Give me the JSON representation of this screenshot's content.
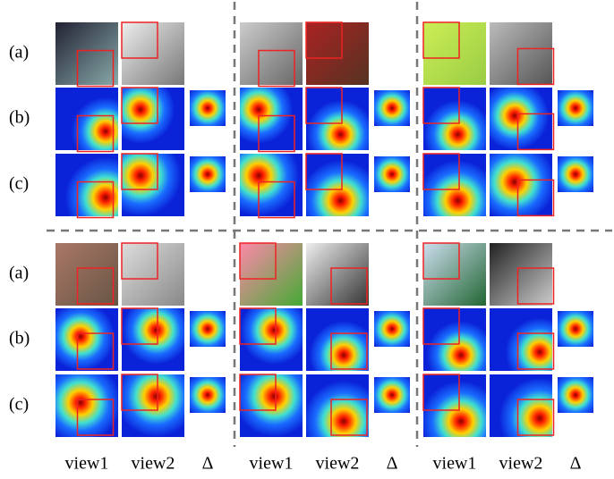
{
  "row_labels": [
    "(a)",
    "(b)",
    "(c)",
    "(a)",
    "(b)",
    "(c)"
  ],
  "column_labels": [
    "view1",
    "view2",
    "Δ",
    "view1",
    "view2",
    "Δ",
    "view1",
    "view2",
    "Δ"
  ]
}
